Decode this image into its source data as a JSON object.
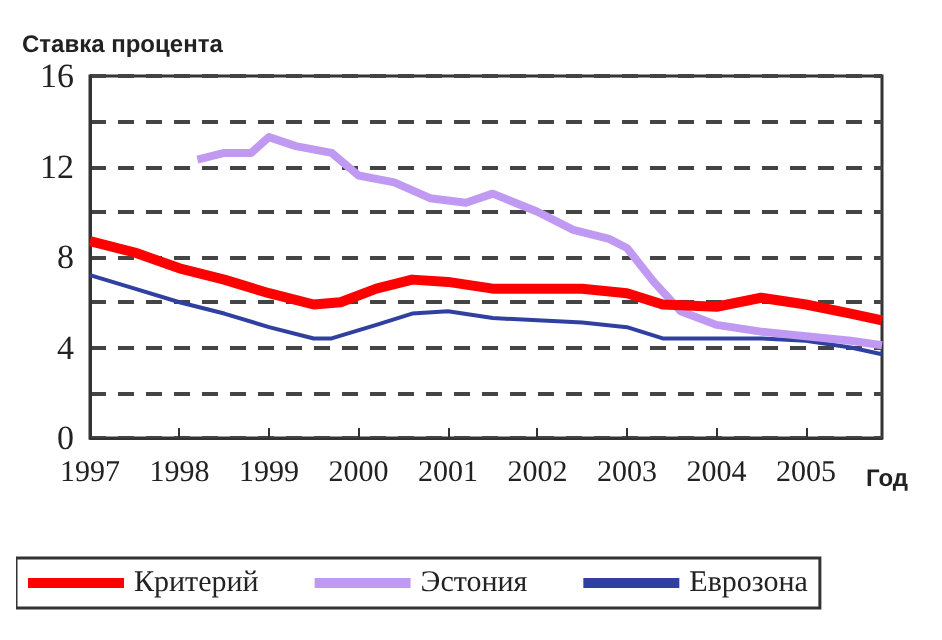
{
  "chart_data": {
    "type": "line",
    "ylabel": "Ставка процента",
    "xlabel": "Год",
    "xlim": [
      1997,
      2005.85
    ],
    "xticks": [
      1997,
      1998,
      1999,
      2000,
      2001,
      2002,
      2003,
      2004,
      2005
    ],
    "ylim": [
      0,
      16
    ],
    "yticks": [
      0,
      4,
      8,
      12,
      16
    ],
    "grid": "y",
    "legend": "bottom",
    "marker": "none",
    "line_style": "solid",
    "series": [
      {
        "name": "Критерий",
        "color": "#ff0000",
        "x": [
          1997,
          1997.5,
          1998,
          1998.5,
          1999,
          1999.5,
          1999.8,
          2000.2,
          2000.6,
          2001,
          2001.5,
          2002,
          2002.5,
          2003,
          2003.4,
          2004,
          2004.5,
          2005,
          2005.5,
          2005.85
        ],
        "values": [
          8.7,
          8.2,
          7.5,
          7.0,
          6.4,
          5.9,
          6.0,
          6.6,
          7.0,
          6.9,
          6.6,
          6.6,
          6.6,
          6.4,
          5.9,
          5.8,
          6.2,
          5.9,
          5.5,
          5.2
        ]
      },
      {
        "name": "Эстония",
        "color": "#c09af2",
        "x": [
          1998.2,
          1998.5,
          1998.8,
          1999,
          1999.3,
          1999.7,
          2000,
          2000.4,
          2000.8,
          2001.2,
          2001.5,
          2002,
          2002.4,
          2002.8,
          2003,
          2003.3,
          2003.6,
          2004,
          2004.5,
          2005,
          2005.5,
          2005.85
        ],
        "values": [
          12.3,
          12.6,
          12.6,
          13.3,
          12.9,
          12.6,
          11.6,
          11.3,
          10.6,
          10.4,
          10.8,
          10.0,
          9.2,
          8.8,
          8.4,
          6.9,
          5.6,
          5.0,
          4.7,
          4.5,
          4.3,
          4.1
        ]
      },
      {
        "name": "Еврозона",
        "color": "#3040a0",
        "x": [
          1997,
          1997.5,
          1998,
          1998.5,
          1999,
          1999.5,
          1999.7,
          2000.2,
          2000.6,
          2001,
          2001.5,
          2002,
          2002.5,
          2003,
          2003.4,
          2004,
          2004.5,
          2005,
          2005.5,
          2005.85
        ],
        "values": [
          7.2,
          6.6,
          6.0,
          5.5,
          4.9,
          4.4,
          4.4,
          5.0,
          5.5,
          5.6,
          5.3,
          5.2,
          5.1,
          4.9,
          4.4,
          4.4,
          4.4,
          4.3,
          4.0,
          3.7
        ]
      }
    ]
  }
}
